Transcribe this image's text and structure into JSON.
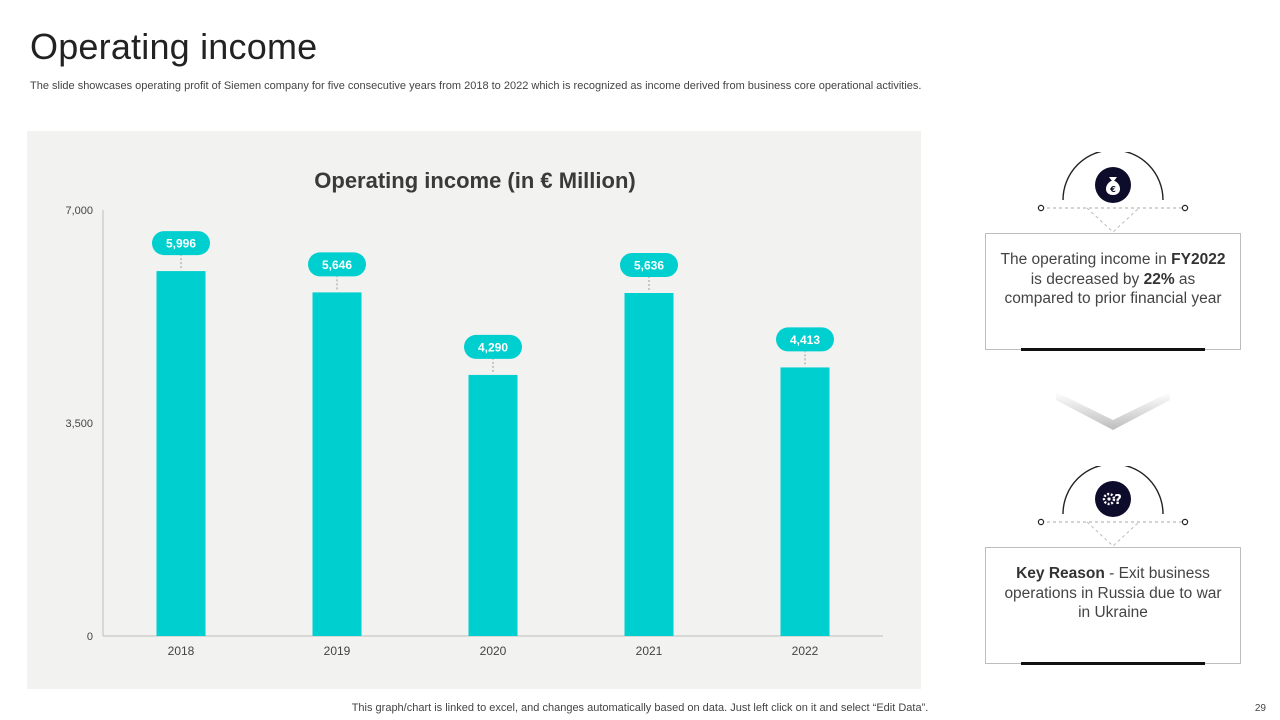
{
  "title": "Operating income",
  "subtitle": "The slide showcases operating profit of Siemen company for five  consecutive years from 2018 to  2022 which is recognized as income derived from business core operational activities.",
  "footer_note": "This graph/chart is linked to excel,  and changes automatically based on data. Just left click on it and select “Edit Data”.",
  "page_number": "29",
  "colors": {
    "bar": "#00cfcf",
    "panel": "#f2f2f0",
    "icon_circle": "#0d0d2b",
    "card_accent": "#111111"
  },
  "cards": [
    {
      "icon": "money-bag-icon",
      "text_parts": {
        "p1": "The operating income in ",
        "b1": "FY2022",
        "p2": " is decreased by ",
        "b2": "22%",
        "p3": " as compared to prior financial year"
      }
    },
    {
      "icon": "question-gear-icon",
      "text_parts": {
        "b1": "Key Reason",
        "p1": " - Exit business operations in Russia due to war in Ukraine"
      }
    }
  ],
  "chart_data": {
    "type": "bar",
    "title": "Operating income (in € Million)",
    "categories": [
      "2018",
      "2019",
      "2020",
      "2021",
      "2022"
    ],
    "values": [
      5996,
      5646,
      4290,
      5636,
      4413
    ],
    "data_labels": [
      "5,996",
      "5,646",
      "4,290",
      "5,636",
      "4,413"
    ],
    "ylim": [
      0,
      7000
    ],
    "yticks": [
      0,
      3500,
      7000
    ],
    "ytick_labels": [
      "0",
      "3,500",
      "7,000"
    ],
    "xlabel": "",
    "ylabel": "",
    "grid": false,
    "legend": "none"
  }
}
